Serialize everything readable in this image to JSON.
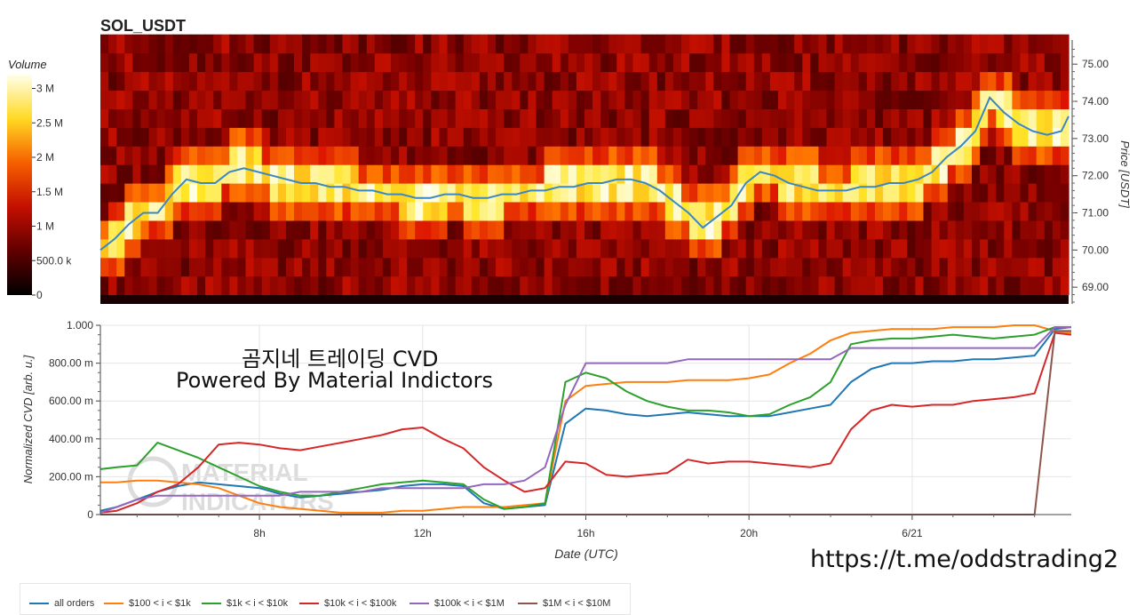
{
  "title": "SOL_USDT",
  "watermark_title": [
    "곰지네 트레이딩 CVD",
    "Powered By Material Indictors"
  ],
  "watermark_logo_text": [
    "MATERIAL",
    "INDICATORS"
  ],
  "url_text": "https://t.me/oddstrading2",
  "colors": {
    "all_orders": "#1f77b4",
    "s100_1k": "#ff7f0e",
    "s1k_10k": "#2ca02c",
    "s10k_100k": "#d62728",
    "s100k_1m": "#9467bd",
    "s1m_10m": "#8c564b"
  },
  "chart_data": [
    {
      "type": "heatmap",
      "title": "SOL_USDT",
      "colorbar_label": "Volume",
      "colorbar_ticks": [
        "0",
        "500.0 k",
        "1 M",
        "1.5 M",
        "2 M",
        "2.5 M",
        "3 M"
      ],
      "colorbar_range": [
        0,
        3200000
      ],
      "ylabel": "Price [USDT]",
      "y_ticks": [
        "69.00",
        "70.00",
        "71.00",
        "72.00",
        "73.00",
        "74.00",
        "75.00"
      ],
      "ylim": [
        68.55,
        75.65
      ],
      "x_range_hours": [
        4.0,
        17.5
      ],
      "price_bins_bottom_to_top": [
        68.8,
        69.3,
        69.8,
        70.3,
        70.8,
        71.3,
        71.8,
        72.3,
        72.8,
        73.3,
        73.8,
        74.3,
        74.8,
        75.3
      ],
      "price_line": {
        "x": [
          4.0,
          4.2,
          4.4,
          4.6,
          4.8,
          5.0,
          5.2,
          5.4,
          5.6,
          5.8,
          6.0,
          6.2,
          6.4,
          6.6,
          6.8,
          7.0,
          7.2,
          7.4,
          7.6,
          7.8,
          8.0,
          8.2,
          8.4,
          8.6,
          8.8,
          9.0,
          9.2,
          9.4,
          9.6,
          9.8,
          10.0,
          10.2,
          10.4,
          10.6,
          10.8,
          11.0,
          11.2,
          11.4,
          11.6,
          11.8,
          12.0,
          12.2,
          12.4,
          12.6,
          12.8,
          13.0,
          13.2,
          13.4,
          13.6,
          13.8,
          14.0,
          14.2,
          14.4,
          14.6,
          14.8,
          15.0,
          15.2,
          15.4,
          15.6,
          15.8,
          16.0,
          16.2,
          16.4,
          16.6,
          16.8,
          17.0,
          17.2,
          17.4,
          17.5
        ],
        "y": [
          70.0,
          70.3,
          70.7,
          71.0,
          71.0,
          71.5,
          71.9,
          71.8,
          71.8,
          72.1,
          72.2,
          72.1,
          72.0,
          71.9,
          71.8,
          71.8,
          71.7,
          71.7,
          71.6,
          71.6,
          71.5,
          71.5,
          71.4,
          71.4,
          71.5,
          71.5,
          71.4,
          71.4,
          71.5,
          71.5,
          71.6,
          71.6,
          71.7,
          71.7,
          71.8,
          71.8,
          71.9,
          71.9,
          71.8,
          71.6,
          71.3,
          71.0,
          70.6,
          70.9,
          71.2,
          71.8,
          72.1,
          72.0,
          71.8,
          71.7,
          71.6,
          71.6,
          71.6,
          71.7,
          71.7,
          71.8,
          71.8,
          71.9,
          72.1,
          72.5,
          72.8,
          73.2,
          74.1,
          73.7,
          73.4,
          73.2,
          73.1,
          73.2,
          73.6
        ]
      }
    },
    {
      "type": "line",
      "xlabel": "Date (UTC)",
      "ylabel": "Normalized CVD [arb. u.]",
      "y_ticks": [
        "0",
        "200.00 m",
        "400.00 m",
        "600.00 m",
        "800.00 m",
        "1.000"
      ],
      "ylim": [
        0,
        1.0
      ],
      "x_ticks": [
        "8h",
        "12h",
        "16h",
        "20h",
        "6/21"
      ],
      "x_tick_hours": [
        8,
        12,
        16,
        20,
        24
      ],
      "x_range_hours": [
        4.1,
        27.9
      ],
      "grid": true,
      "legend_position": "bottom",
      "x": [
        4.1,
        4.5,
        5.0,
        5.5,
        6.0,
        6.5,
        7.0,
        7.5,
        8.0,
        8.5,
        9.0,
        9.5,
        10.0,
        10.5,
        11.0,
        11.5,
        12.0,
        12.5,
        13.0,
        13.5,
        14.0,
        14.5,
        15.0,
        15.5,
        16.0,
        16.5,
        17.0,
        17.5,
        18.0,
        18.5,
        19.0,
        19.5,
        20.0,
        20.5,
        21.0,
        21.5,
        22.0,
        22.5,
        23.0,
        23.5,
        24.0,
        24.5,
        25.0,
        25.5,
        26.0,
        26.5,
        27.0,
        27.5,
        27.9
      ],
      "series": [
        {
          "name": "all orders",
          "color_key": "all_orders",
          "values": [
            0.02,
            0.04,
            0.08,
            0.12,
            0.15,
            0.17,
            0.16,
            0.15,
            0.14,
            0.11,
            0.09,
            0.1,
            0.11,
            0.12,
            0.13,
            0.15,
            0.16,
            0.16,
            0.15,
            0.06,
            0.03,
            0.04,
            0.05,
            0.48,
            0.56,
            0.55,
            0.53,
            0.52,
            0.53,
            0.54,
            0.53,
            0.52,
            0.52,
            0.52,
            0.54,
            0.56,
            0.58,
            0.7,
            0.77,
            0.8,
            0.8,
            0.81,
            0.81,
            0.82,
            0.82,
            0.83,
            0.84,
            0.98,
            0.99
          ]
        },
        {
          "name": "$100 < i < $1k",
          "color_key": "s100_1k",
          "values": [
            0.17,
            0.17,
            0.18,
            0.18,
            0.17,
            0.16,
            0.14,
            0.1,
            0.06,
            0.04,
            0.03,
            0.02,
            0.01,
            0.01,
            0.01,
            0.02,
            0.02,
            0.03,
            0.04,
            0.04,
            0.04,
            0.05,
            0.06,
            0.6,
            0.68,
            0.69,
            0.7,
            0.7,
            0.7,
            0.71,
            0.71,
            0.71,
            0.72,
            0.74,
            0.8,
            0.85,
            0.92,
            0.96,
            0.97,
            0.98,
            0.98,
            0.98,
            0.99,
            0.99,
            0.99,
            1.0,
            1.0,
            0.97,
            0.96
          ]
        },
        {
          "name": "$1k < i < $10k",
          "color_key": "s1k_10k",
          "values": [
            0.24,
            0.25,
            0.26,
            0.38,
            0.34,
            0.3,
            0.25,
            0.2,
            0.15,
            0.12,
            0.1,
            0.1,
            0.12,
            0.14,
            0.16,
            0.17,
            0.18,
            0.17,
            0.16,
            0.08,
            0.03,
            0.04,
            0.06,
            0.7,
            0.75,
            0.72,
            0.65,
            0.6,
            0.57,
            0.55,
            0.55,
            0.54,
            0.52,
            0.53,
            0.58,
            0.62,
            0.7,
            0.9,
            0.92,
            0.93,
            0.93,
            0.94,
            0.95,
            0.94,
            0.93,
            0.94,
            0.95,
            0.99,
            0.99
          ]
        },
        {
          "name": "$10k < i < $100k",
          "color_key": "s10k_100k",
          "values": [
            0.01,
            0.02,
            0.06,
            0.12,
            0.16,
            0.25,
            0.37,
            0.38,
            0.37,
            0.35,
            0.34,
            0.36,
            0.38,
            0.4,
            0.42,
            0.45,
            0.46,
            0.4,
            0.35,
            0.25,
            0.18,
            0.12,
            0.14,
            0.28,
            0.27,
            0.21,
            0.2,
            0.21,
            0.22,
            0.29,
            0.27,
            0.28,
            0.28,
            0.27,
            0.26,
            0.25,
            0.27,
            0.45,
            0.55,
            0.58,
            0.57,
            0.58,
            0.58,
            0.6,
            0.61,
            0.62,
            0.64,
            0.96,
            0.95
          ]
        },
        {
          "name": "$100k < i < $1M",
          "color_key": "s100k_1m",
          "values": [
            0.01,
            0.04,
            0.08,
            0.1,
            0.1,
            0.1,
            0.1,
            0.1,
            0.1,
            0.1,
            0.12,
            0.12,
            0.12,
            0.12,
            0.14,
            0.14,
            0.14,
            0.14,
            0.14,
            0.16,
            0.16,
            0.18,
            0.25,
            0.58,
            0.8,
            0.8,
            0.8,
            0.8,
            0.8,
            0.82,
            0.82,
            0.82,
            0.82,
            0.82,
            0.82,
            0.82,
            0.82,
            0.88,
            0.88,
            0.88,
            0.88,
            0.88,
            0.88,
            0.88,
            0.88,
            0.88,
            0.88,
            0.99,
            0.99
          ]
        },
        {
          "name": "$1M < i < $10M",
          "color_key": "s1m_10m",
          "values": [
            0.0,
            0.0,
            0.0,
            0.0,
            0.0,
            0.0,
            0.0,
            0.0,
            0.0,
            0.0,
            0.0,
            0.0,
            0.0,
            0.0,
            0.0,
            0.0,
            0.0,
            0.0,
            0.0,
            0.0,
            0.0,
            0.0,
            0.0,
            0.0,
            0.0,
            0.0,
            0.0,
            0.0,
            0.0,
            0.0,
            0.0,
            0.0,
            0.0,
            0.0,
            0.0,
            0.0,
            0.0,
            0.0,
            0.0,
            0.0,
            0.0,
            0.0,
            0.0,
            0.0,
            0.0,
            0.0,
            0.0,
            0.97,
            0.97
          ]
        }
      ]
    }
  ]
}
